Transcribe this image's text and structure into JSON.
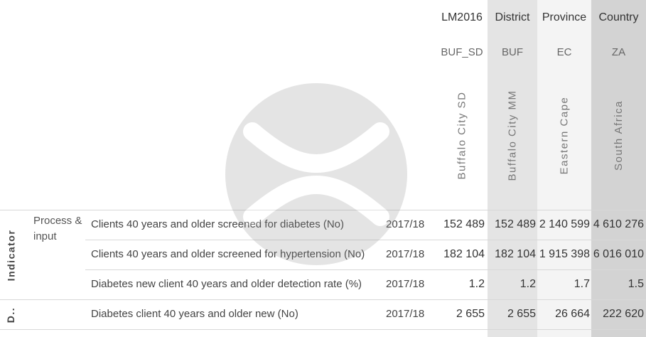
{
  "columns": [
    {
      "header": "LM2016",
      "code": "BUF_SD",
      "name": "Buffalo City SD"
    },
    {
      "header": "District",
      "code": "BUF",
      "name": "Buffalo City MM"
    },
    {
      "header": "Province",
      "code": "EC",
      "name": "Eastern Cape"
    },
    {
      "header": "Country",
      "code": "ZA",
      "name": "South Africa"
    }
  ],
  "sections": {
    "indicator": "Indicator",
    "d": "D.."
  },
  "group_label": "Process & input",
  "rows": [
    {
      "indicator": "Clients 40 years and older screened for diabetes (No)",
      "period": "2017/18",
      "values": [
        "152 489",
        "152 489",
        "2 140 599",
        "4 610 276"
      ]
    },
    {
      "indicator": "Clients 40 years and older screened for hypertension (No)",
      "period": "2017/18",
      "values": [
        "182 104",
        "182 104",
        "1 915 398",
        "6 016 010"
      ]
    },
    {
      "indicator": "Diabetes new client 40 years and older detection rate (%)",
      "period": "2017/18",
      "values": [
        "1.2",
        "1.2",
        "1.7",
        "1.5"
      ]
    },
    {
      "indicator": "Diabetes client 40 years and older new (No)",
      "period": "2017/18",
      "values": [
        "2 655",
        "2 655",
        "26 664",
        "222 620"
      ]
    }
  ],
  "colors": {
    "band_light": "#ececec",
    "band_dark": "#d2d2d2",
    "watermark": "#8a8a8a"
  }
}
